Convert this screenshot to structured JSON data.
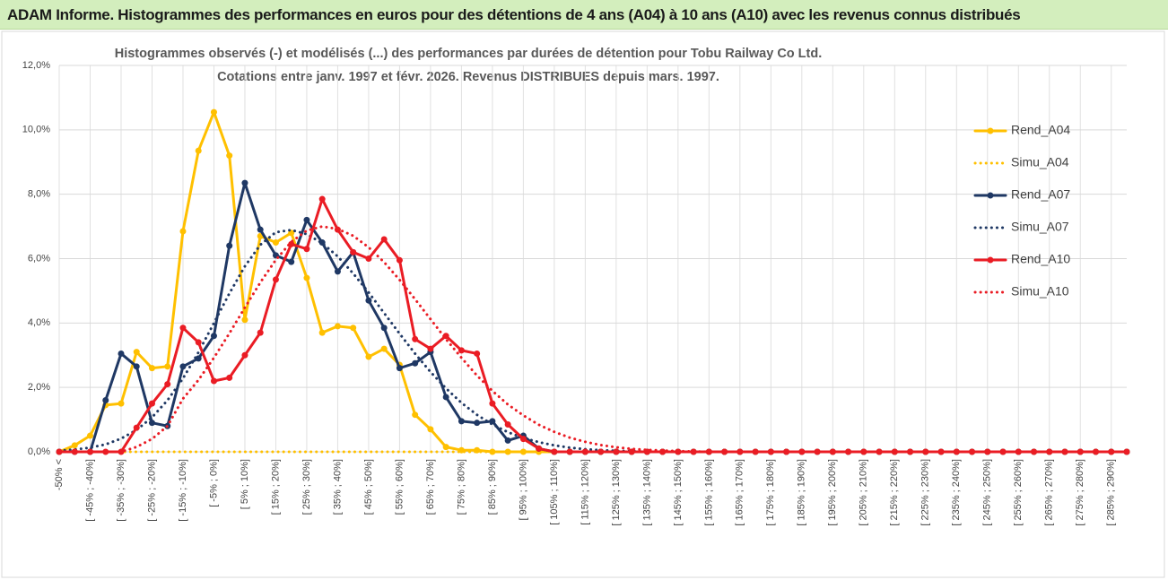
{
  "header": {
    "title": "ADAM Informe. Histogrammes des performances en euros pour des détentions de 4 ans (A04) à 10 ans (A10) avec les revenus connus distribués"
  },
  "chart_data": {
    "type": "line",
    "title": "Histogrammes observés (-) et modélisés (...) des performances par durées de détention pour Tobu Railway Co Ltd.",
    "subtitle": "Cotations entre janv. 1997 et févr. 2026. Revenus DISTRIBUES depuis mars. 1997.",
    "categories": [
      "-50% <",
      null,
      "[ -45% ; -40%]",
      null,
      "[ -35% ; -30%]",
      null,
      "[ -25% ; -20%]",
      null,
      "[ -15% ; -10%]",
      null,
      "[ -5% ; 0%]",
      null,
      "[ 5% ; 10%]",
      null,
      "[ 15% ; 20%]",
      null,
      "[ 25% ; 30%]",
      null,
      "[ 35% ; 40%]",
      null,
      "[ 45% ; 50%]",
      null,
      "[ 55% ; 60%]",
      null,
      "[ 65% ; 70%]",
      null,
      "[ 75% ; 80%]",
      null,
      "[ 85% ; 90%]",
      null,
      "[ 95% ; 100%]",
      null,
      "[ 105% ; 110%]",
      null,
      "[ 115% ; 120%]",
      null,
      "[ 125% ; 130%]",
      null,
      "[ 135% ; 140%]",
      null,
      "[ 145% ; 150%]",
      null,
      "[ 155% ; 160%]",
      null,
      "[ 165% ; 170%]",
      null,
      "[ 175% ; 180%]",
      null,
      "[ 185% ; 190%]",
      null,
      "[ 195% ; 200%]",
      null,
      "[ 205% ; 210%]",
      null,
      "[ 215% ; 220%]",
      null,
      "[ 225% ; 230%]",
      null,
      "[ 235% ; 240%]",
      null,
      "[ 245% ; 250%]",
      null,
      "[ 255% ; 260%]",
      null,
      "[ 265% ; 270%]",
      null,
      "[ 275% ; 280%]",
      null,
      "[ 285% ; 290%]",
      null
    ],
    "ylim": [
      0,
      12
    ],
    "yticks": [
      {
        "value": 0,
        "label": "0,0%"
      },
      {
        "value": 2,
        "label": "2,0%"
      },
      {
        "value": 4,
        "label": "4,0%"
      },
      {
        "value": 6,
        "label": "6,0%"
      },
      {
        "value": 8,
        "label": "8,0%"
      },
      {
        "value": 10,
        "label": "10,0%"
      },
      {
        "value": 12,
        "label": "12,0%"
      }
    ],
    "grid": true,
    "legend": "right",
    "series": [
      {
        "name": "Rend_A04",
        "color": "#ffc000",
        "line_style": "solid",
        "marker": "circle",
        "values": [
          0,
          0.2,
          0.5,
          1.45,
          1.5,
          3.1,
          2.6,
          2.65,
          6.85,
          9.35,
          10.55,
          9.2,
          4.1,
          6.7,
          6.5,
          6.8,
          5.4,
          3.7,
          3.9,
          3.85,
          2.95,
          3.2,
          2.7,
          1.15,
          0.7,
          0.15,
          0.05,
          0.05,
          0,
          0,
          0,
          0,
          0,
          0,
          0,
          0,
          0,
          0,
          0,
          0,
          0,
          0,
          0,
          0,
          0,
          0,
          0,
          0,
          0,
          0,
          0,
          0,
          0,
          0,
          0,
          0,
          0,
          0,
          0,
          0,
          0,
          0,
          0,
          0,
          0,
          0,
          0,
          0,
          0,
          0
        ]
      },
      {
        "name": "Simu_A04",
        "color": "#ffc000",
        "line_style": "dotted",
        "marker": "none",
        "values": [
          0,
          0,
          0,
          0,
          0,
          0,
          0,
          0,
          0,
          0,
          0,
          0,
          0,
          0,
          0,
          0,
          0,
          0,
          0,
          0,
          0,
          0,
          0,
          0,
          0,
          0,
          0,
          0,
          0,
          0,
          0,
          0,
          0,
          0,
          0,
          0,
          0,
          0,
          0,
          0,
          0,
          0,
          0,
          0,
          0,
          0,
          0,
          0,
          0,
          0,
          0,
          0,
          0,
          0,
          0,
          0,
          0,
          0,
          0,
          0,
          0,
          0,
          0,
          0,
          0,
          0,
          0,
          0,
          0,
          0
        ]
      },
      {
        "name": "Rend_A07",
        "color": "#1f3864",
        "line_style": "solid",
        "marker": "circle",
        "values": [
          0,
          0,
          0,
          1.6,
          3.05,
          2.65,
          0.9,
          0.8,
          2.65,
          2.9,
          3.6,
          6.4,
          8.35,
          6.9,
          6.1,
          5.9,
          7.2,
          6.5,
          5.6,
          6.2,
          4.7,
          3.85,
          2.6,
          2.75,
          3.1,
          1.7,
          0.95,
          0.9,
          0.95,
          0.35,
          0.5,
          0.1,
          0,
          0,
          0,
          0,
          0,
          0,
          0,
          0,
          0,
          0,
          0,
          0,
          0,
          0,
          0,
          0,
          0,
          0,
          0,
          0,
          0,
          0,
          0,
          0,
          0,
          0,
          0,
          0,
          0,
          0,
          0,
          0,
          0,
          0,
          0,
          0,
          0,
          0
        ]
      },
      {
        "name": "Simu_A07",
        "color": "#1f3864",
        "line_style": "dotted",
        "marker": "none",
        "values": [
          0.03,
          0.07,
          0.13,
          0.23,
          0.41,
          0.68,
          1.07,
          1.6,
          2.28,
          3.09,
          4.0,
          4.92,
          5.76,
          6.43,
          6.82,
          6.89,
          6.76,
          6.48,
          6.07,
          5.54,
          4.95,
          4.31,
          3.67,
          3.05,
          2.48,
          1.97,
          1.52,
          1.15,
          0.85,
          0.61,
          0.43,
          0.3,
          0.2,
          0.13,
          0.08,
          0.05,
          0.03,
          0.02,
          0.01,
          0,
          0,
          0,
          0,
          0,
          0,
          0,
          0,
          0,
          0,
          0,
          0,
          0,
          0,
          0,
          0,
          0,
          0,
          0,
          0,
          0,
          0,
          0,
          0,
          0,
          0,
          0,
          0,
          0,
          0,
          0
        ]
      },
      {
        "name": "Rend_A10",
        "color": "#ea1c24",
        "line_style": "solid",
        "marker": "circle",
        "values": [
          0,
          0,
          0,
          0,
          0,
          0.75,
          1.5,
          2.1,
          3.85,
          3.4,
          2.2,
          2.3,
          3.0,
          3.7,
          5.35,
          6.45,
          6.3,
          7.85,
          6.9,
          6.2,
          6.0,
          6.6,
          5.95,
          3.5,
          3.2,
          3.6,
          3.15,
          3.05,
          1.5,
          0.85,
          0.4,
          0.1,
          0,
          0,
          0,
          0,
          0,
          0,
          0,
          0,
          0,
          0,
          0,
          0,
          0,
          0,
          0,
          0,
          0,
          0,
          0,
          0,
          0,
          0,
          0,
          0,
          0,
          0,
          0,
          0,
          0,
          0,
          0,
          0,
          0,
          0,
          0,
          0,
          0,
          0
        ]
      },
      {
        "name": "Simu_A10",
        "color": "#ea1c24",
        "line_style": "dotted",
        "marker": "none",
        "values": [
          0,
          0,
          0,
          0,
          0,
          0.15,
          0.4,
          0.8,
          1.65,
          2.23,
          2.92,
          3.68,
          4.48,
          5.26,
          5.96,
          6.52,
          6.87,
          7.0,
          6.92,
          6.71,
          6.35,
          5.89,
          5.34,
          4.74,
          4.12,
          3.5,
          2.92,
          2.37,
          1.89,
          1.47,
          1.13,
          0.84,
          0.62,
          0.44,
          0.31,
          0.21,
          0.14,
          0.09,
          0.06,
          0.04,
          0.02,
          0.01,
          0,
          0,
          0,
          0,
          0,
          0,
          0,
          0,
          0,
          0,
          0,
          0,
          0,
          0,
          0,
          0,
          0,
          0,
          0,
          0,
          0,
          0,
          0,
          0,
          0,
          0,
          0,
          0
        ]
      }
    ]
  }
}
